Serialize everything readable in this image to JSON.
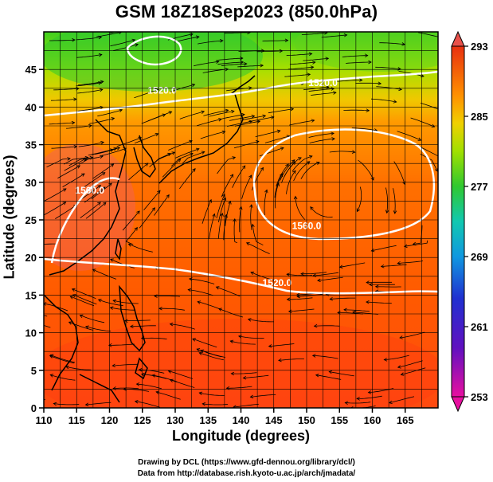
{
  "title": "GSM 18Z18Sep2023 (850.0hPa)",
  "x_axis": {
    "label": "Longitude (degrees)",
    "ticks": [
      "110",
      "115",
      "120",
      "125",
      "130",
      "135",
      "140",
      "145",
      "150",
      "155",
      "160",
      "165"
    ],
    "range": [
      110,
      170
    ]
  },
  "y_axis": {
    "label": "Latitude  (degrees)",
    "ticks": [
      "0",
      "5",
      "10",
      "15",
      "20",
      "25",
      "30",
      "35",
      "40",
      "45"
    ],
    "range": [
      0,
      50
    ]
  },
  "colorbar": {
    "ticks": [
      "293",
      "285",
      "277",
      "269",
      "261",
      "253"
    ],
    "range": [
      253,
      293
    ],
    "colors": [
      "#e8109a",
      "#2222cc",
      "#1090e0",
      "#10c8a0",
      "#40c820",
      "#c8e000",
      "#ff9a00",
      "#ff5a00",
      "#e83010"
    ]
  },
  "contour_labels": [
    {
      "text": "1520.0",
      "lon": 152.5,
      "lat": 42.8
    },
    {
      "text": "1520.0",
      "lon": 128.0,
      "lat": 41.8
    },
    {
      "text": "1560.0",
      "lon": 150.0,
      "lat": 23.8
    },
    {
      "text": "1520.0",
      "lon": 145.5,
      "lat": 16.2
    },
    {
      "text": "1560.0",
      "lon": 117.0,
      "lat": 28.5
    }
  ],
  "credits": [
    "Drawing by DCL (https://www.gfd-dennou.org/library/dcl/)",
    "Data from http://database.rish.kyoto-u.ac.jp/arch/jmadata/"
  ]
}
